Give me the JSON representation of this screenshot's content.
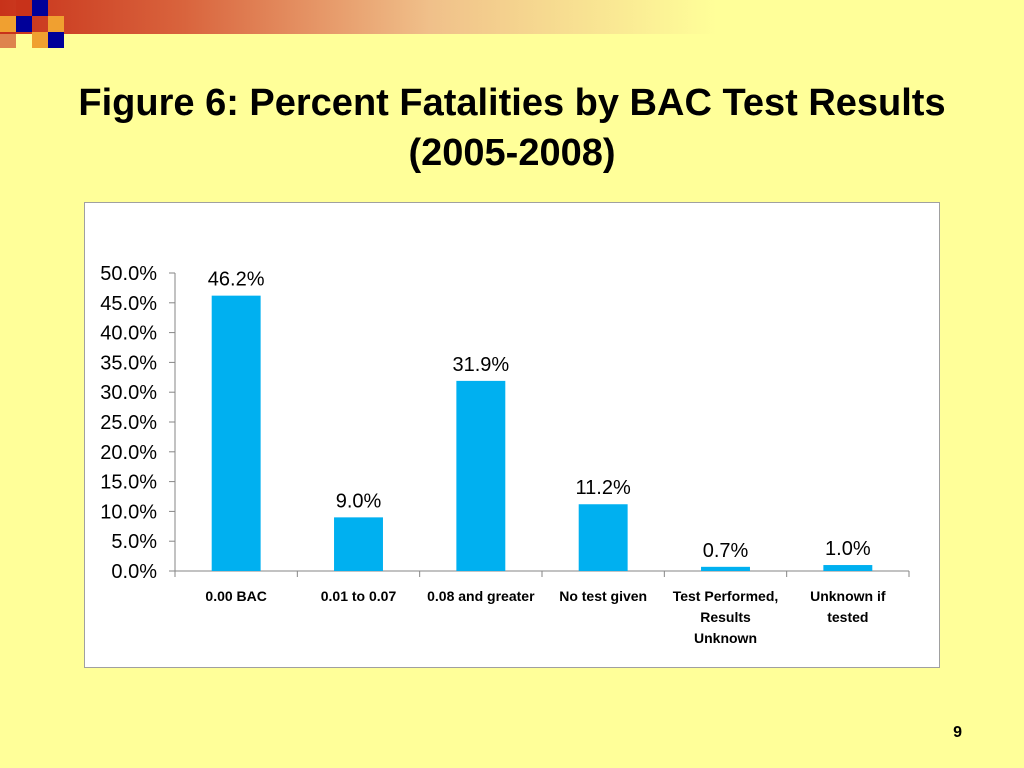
{
  "slide": {
    "title_line1": "Figure 6: Percent Fatalities by BAC Test Results",
    "title_line2": "(2005-2008)",
    "page_number": "9"
  },
  "colors": {
    "background": "#ffff99",
    "bar": "#00b0f0",
    "accent_red": "#c8321a",
    "accent_navy": "#000099",
    "accent_orange": "#f0a030"
  },
  "chart_data": {
    "type": "bar",
    "categories": [
      [
        "0.00 BAC"
      ],
      [
        "0.01 to 0.07"
      ],
      [
        "0.08 and greater"
      ],
      [
        "No test given"
      ],
      [
        "Test Performed,",
        "Results",
        "Unknown"
      ],
      [
        "Unknown if",
        "tested"
      ]
    ],
    "values": [
      46.2,
      9.0,
      31.9,
      11.2,
      0.7,
      1.0
    ],
    "data_labels": [
      "46.2%",
      "9.0%",
      "31.9%",
      "11.2%",
      "0.7%",
      "1.0%"
    ],
    "y_ticks": [
      "0.0%",
      "5.0%",
      "10.0%",
      "15.0%",
      "20.0%",
      "25.0%",
      "30.0%",
      "35.0%",
      "40.0%",
      "45.0%",
      "50.0%"
    ],
    "ylim": [
      0,
      50
    ],
    "xlabel": "",
    "ylabel": "",
    "grid": false,
    "legend": "none"
  }
}
